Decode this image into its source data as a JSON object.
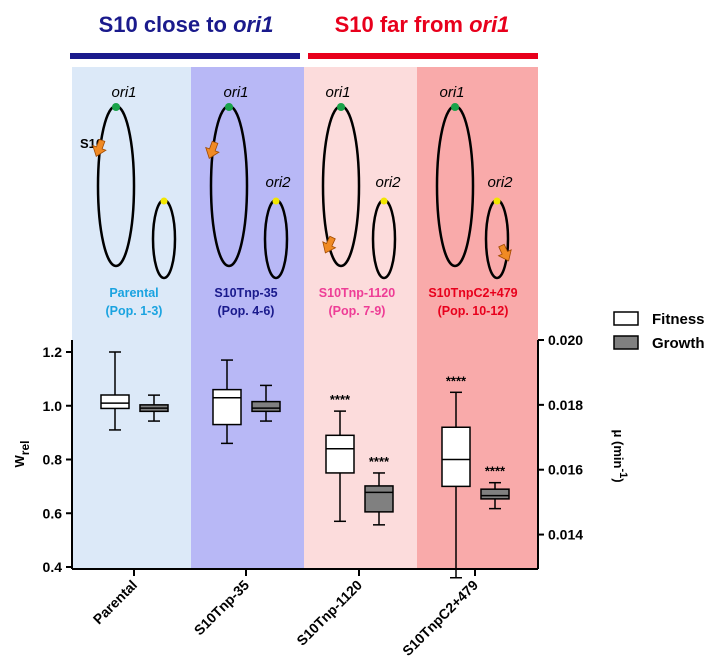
{
  "header": {
    "left": {
      "prefix": "S10 close to ",
      "italic": "ori1",
      "color": "#1a1a8c"
    },
    "right": {
      "prefix": "S10 far from ",
      "italic": "ori1",
      "color": "#e8001c"
    }
  },
  "panels": [
    {
      "bg": "#dce9f8",
      "name": "Parental",
      "pop": "(Pop. 1-3)",
      "color": "#1aa3e0",
      "s10_position": "near ori1 (chromosome 1)",
      "s10_label": "S10"
    },
    {
      "bg": "#b8b8f6",
      "name": "S10Tnp-35",
      "pop": "(Pop. 4-6)",
      "color": "#1a1a8c",
      "s10_position": "near ori1 (chromosome 1)"
    },
    {
      "bg": "#fcdcdc",
      "name": "S10Tnp-1120",
      "pop": "(Pop. 7-9)",
      "color": "#ee3d96",
      "s10_position": "far from ori1 (chromosome 1)"
    },
    {
      "bg": "#f9aaaa",
      "name": "S10TnpC2+479",
      "pop": "(Pop. 10-12)",
      "color": "#e8001c",
      "s10_position": "chromosome 2"
    }
  ],
  "diagram_labels": {
    "ori1": "ori1",
    "ori2": "ori2",
    "S10": "S10"
  },
  "legend": {
    "fitness": "Fitness",
    "growth": "Growth",
    "fitness_fill": "#ffffff",
    "growth_fill": "#808080"
  },
  "chart_data": {
    "type": "box",
    "categories": [
      "Parental",
      "S10Tnp-35",
      "S10Tnp-1120",
      "S10TnpC2+479"
    ],
    "ylabel": "W",
    "ylabel_sub": "rel",
    "y2label_prefix": "μ (min",
    "y2label_sup": "-1",
    "y2label_suffix": ")",
    "ylim": [
      0.4,
      1.2
    ],
    "yticks": [
      "0.4",
      "0.6",
      "0.8",
      "1.0",
      "1.2"
    ],
    "y2lim": [
      0.013,
      0.02
    ],
    "y2ticks": [
      "0.014",
      "0.016",
      "0.018",
      "0.020"
    ],
    "series": [
      {
        "name": "Fitness",
        "axis": "left",
        "boxes": [
          {
            "min": 0.91,
            "q1": 0.99,
            "median": 1.01,
            "q3": 1.04,
            "max": 1.2,
            "sig": ""
          },
          {
            "min": 0.86,
            "q1": 0.93,
            "median": 1.03,
            "q3": 1.06,
            "max": 1.17,
            "sig": ""
          },
          {
            "min": 0.57,
            "q1": 0.75,
            "median": 0.84,
            "q3": 0.89,
            "max": 0.98,
            "sig": "****"
          },
          {
            "min": 0.36,
            "q1": 0.7,
            "median": 0.8,
            "q3": 0.92,
            "max": 1.05,
            "sig": "****"
          }
        ]
      },
      {
        "name": "Growth",
        "axis": "right",
        "boxes": [
          {
            "min": 0.0175,
            "q1": 0.0178,
            "median": 0.0179,
            "q3": 0.018,
            "max": 0.0183,
            "sig": ""
          },
          {
            "min": 0.0175,
            "q1": 0.0178,
            "median": 0.0179,
            "q3": 0.0181,
            "max": 0.0186,
            "sig": ""
          },
          {
            "min": 0.0143,
            "q1": 0.0147,
            "median": 0.0153,
            "q3": 0.0155,
            "max": 0.0159,
            "sig": "****"
          },
          {
            "min": 0.0148,
            "q1": 0.0151,
            "median": 0.0152,
            "q3": 0.0154,
            "max": 0.0156,
            "sig": "****"
          }
        ]
      }
    ]
  }
}
